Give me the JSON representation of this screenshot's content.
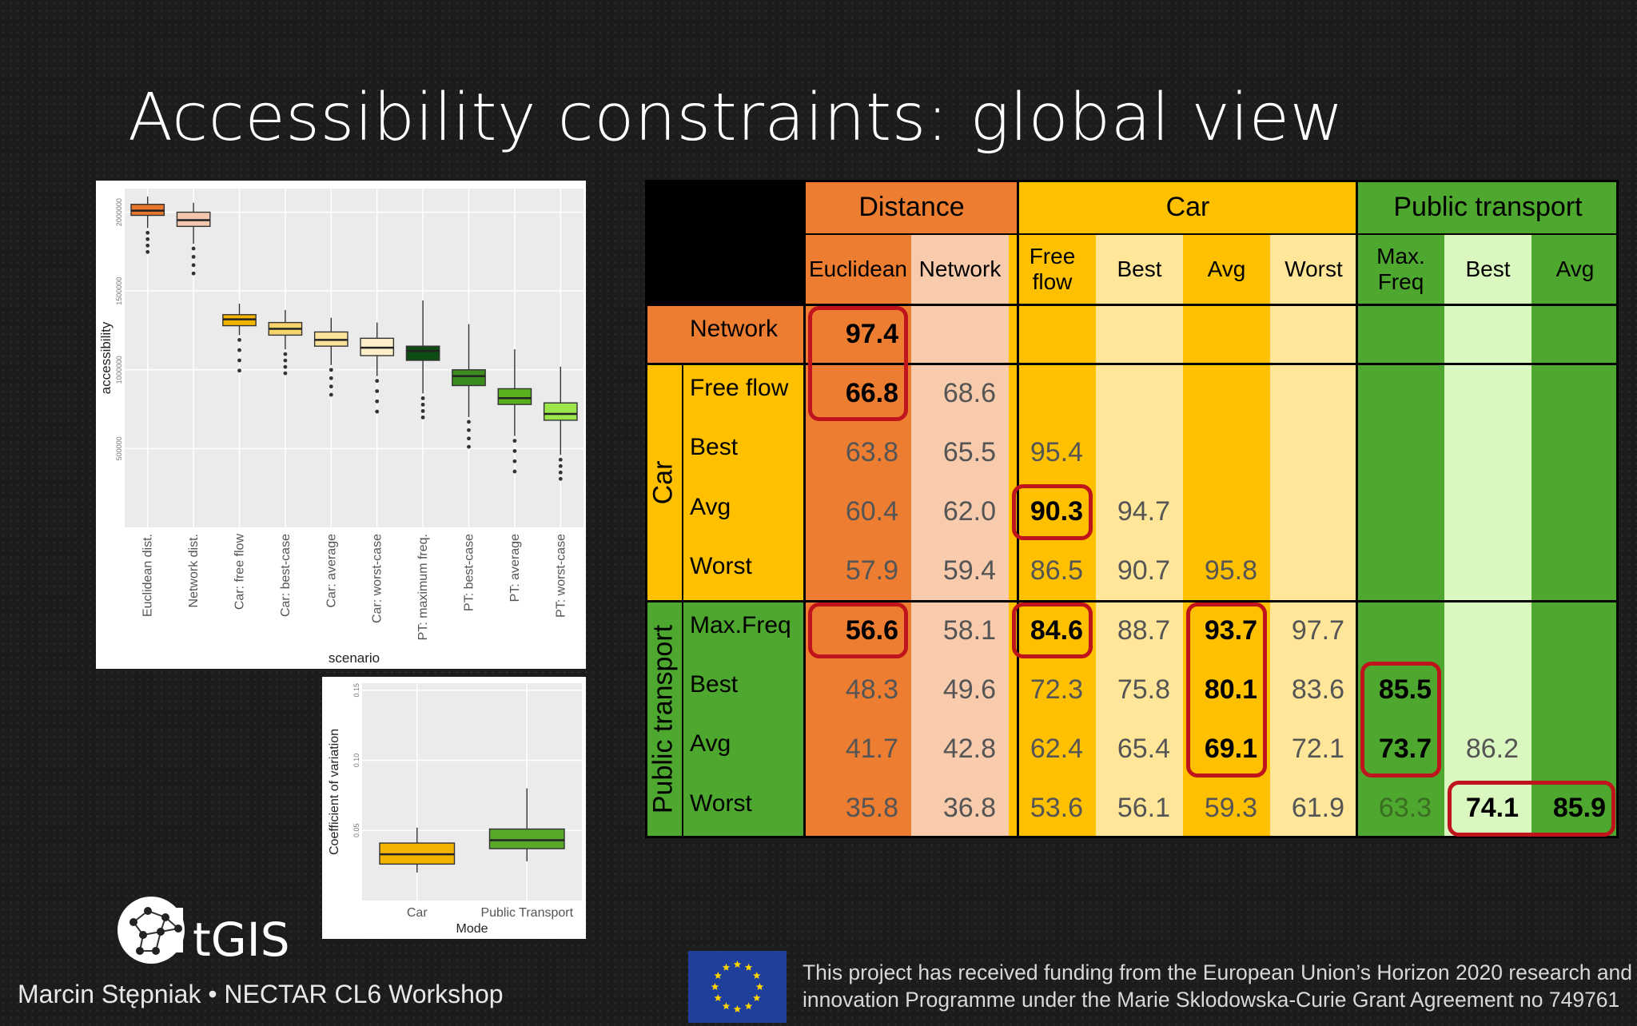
{
  "slide": {
    "title": "Accessibility constraints: global view",
    "footer": "Marcin Stępniak • NECTAR CL6 Workshop",
    "logo_text": "tGIS",
    "funding_line1": "This project has received funding from the European Union’s Horizon 2020 research and",
    "funding_line2": "innovation Programme under the Marie Sklodowska-Curie Grant Agreement no 749761"
  },
  "table": {
    "groups": [
      "Distance",
      "Car",
      "Public transport"
    ],
    "columns": [
      "Euclidean",
      "Network",
      "Free flow",
      "Best",
      "Avg",
      "Worst",
      "Max. Freq",
      "Best",
      "Avg"
    ],
    "row_groups": [
      "Car",
      "Public transport"
    ],
    "rows": [
      {
        "label": "Network",
        "values": [
          "97.4",
          "",
          "",
          "",
          "",
          "",
          "",
          "",
          ""
        ]
      },
      {
        "label": "Free flow",
        "values": [
          "66.8",
          "68.6",
          "",
          "",
          "",
          "",
          "",
          "",
          ""
        ]
      },
      {
        "label": "Best",
        "values": [
          "63.8",
          "65.5",
          "95.4",
          "",
          "",
          "",
          "",
          "",
          ""
        ]
      },
      {
        "label": "Avg",
        "values": [
          "60.4",
          "62.0",
          "90.3",
          "94.7",
          "",
          "",
          "",
          "",
          ""
        ]
      },
      {
        "label": "Worst",
        "values": [
          "57.9",
          "59.4",
          "86.5",
          "90.7",
          "95.8",
          "",
          "",
          "",
          ""
        ]
      },
      {
        "label": "Max.Freq",
        "values": [
          "56.6",
          "58.1",
          "84.6",
          "88.7",
          "93.7",
          "97.7",
          "",
          "",
          ""
        ]
      },
      {
        "label": "Best",
        "values": [
          "48.3",
          "49.6",
          "72.3",
          "75.8",
          "80.1",
          "83.6",
          "85.5",
          "",
          ""
        ]
      },
      {
        "label": "Avg",
        "values": [
          "41.7",
          "42.8",
          "62.4",
          "65.4",
          "69.1",
          "72.1",
          "73.7",
          "86.2",
          ""
        ]
      },
      {
        "label": "Worst",
        "values": [
          "35.8",
          "36.8",
          "53.6",
          "56.1",
          "59.3",
          "61.9",
          "63.3",
          "74.1",
          "85.9"
        ]
      }
    ],
    "highlighted": [
      [
        0,
        0
      ],
      [
        1,
        0
      ],
      [
        5,
        0
      ],
      [
        3,
        2
      ],
      [
        5,
        2
      ],
      [
        5,
        4
      ],
      [
        6,
        4
      ],
      [
        7,
        4
      ],
      [
        6,
        6
      ],
      [
        7,
        6
      ],
      [
        8,
        7
      ],
      [
        8,
        8
      ]
    ],
    "colors": {
      "distance_dark": "#ed7d31",
      "distance_light": "#f8cbad",
      "car_dark": "#ffc000",
      "car_light": "#ffe699",
      "pt_dark": "#4ea72e",
      "pt_light": "#d9f7be",
      "highlight_border": "#c0141c"
    }
  },
  "chart_data": [
    {
      "type": "box",
      "title": "",
      "xlabel": "scenario",
      "ylabel": "accessibility",
      "categories": [
        "Euclidean dist.",
        "Network dist.",
        "Car: free flow",
        "Car: best-case",
        "Car: average",
        "Car: worst-case",
        "PT: maximum freq.",
        "PT: best-case",
        "PT: average",
        "PT: worst-case"
      ],
      "y_ticks": [
        "500000",
        "1000000",
        "1500000",
        "2000000"
      ],
      "ylim": [
        0,
        2150000
      ],
      "colors": [
        "#e8772e",
        "#f2c7ae",
        "#f2b400",
        "#f7d36c",
        "#fbe39a",
        "#fdf0c9",
        "#0d4d14",
        "#3b8c1e",
        "#58b01c",
        "#9be64a"
      ],
      "boxes": [
        {
          "q1": 1980000,
          "median": 2010000,
          "q3": 2050000,
          "whisker_low": 1900000,
          "whisker_high": 2100000
        },
        {
          "q1": 1910000,
          "median": 1950000,
          "q3": 2000000,
          "whisker_low": 1800000,
          "whisker_high": 2060000
        },
        {
          "q1": 1280000,
          "median": 1320000,
          "q3": 1350000,
          "whisker_low": 1220000,
          "whisker_high": 1420000
        },
        {
          "q1": 1220000,
          "median": 1260000,
          "q3": 1300000,
          "whisker_low": 1130000,
          "whisker_high": 1380000
        },
        {
          "q1": 1150000,
          "median": 1190000,
          "q3": 1240000,
          "whisker_low": 1030000,
          "whisker_high": 1330000
        },
        {
          "q1": 1090000,
          "median": 1140000,
          "q3": 1200000,
          "whisker_low": 960000,
          "whisker_high": 1300000
        },
        {
          "q1": 1060000,
          "median": 1120000,
          "q3": 1150000,
          "whisker_low": 850000,
          "whisker_high": 1440000
        },
        {
          "q1": 900000,
          "median": 960000,
          "q3": 1000000,
          "whisker_low": 700000,
          "whisker_high": 1290000
        },
        {
          "q1": 780000,
          "median": 820000,
          "q3": 880000,
          "whisker_low": 580000,
          "whisker_high": 1130000
        },
        {
          "q1": 680000,
          "median": 720000,
          "q3": 790000,
          "whisker_low": 460000,
          "whisker_high": 1020000
        }
      ]
    },
    {
      "type": "box",
      "title": "",
      "xlabel": "Mode",
      "ylabel": "Coefficient of variation",
      "categories": [
        "Car",
        "Public Transport"
      ],
      "y_ticks": [
        "0.05",
        "0.10",
        "0.15"
      ],
      "ylim": [
        0.0,
        0.155
      ],
      "colors": [
        "#f2b400",
        "#58a82a"
      ],
      "boxes": [
        {
          "q1": 0.026,
          "median": 0.033,
          "q3": 0.041,
          "whisker_low": 0.02,
          "whisker_high": 0.052
        },
        {
          "q1": 0.037,
          "median": 0.043,
          "q3": 0.051,
          "whisker_low": 0.028,
          "whisker_high": 0.08
        }
      ]
    }
  ]
}
